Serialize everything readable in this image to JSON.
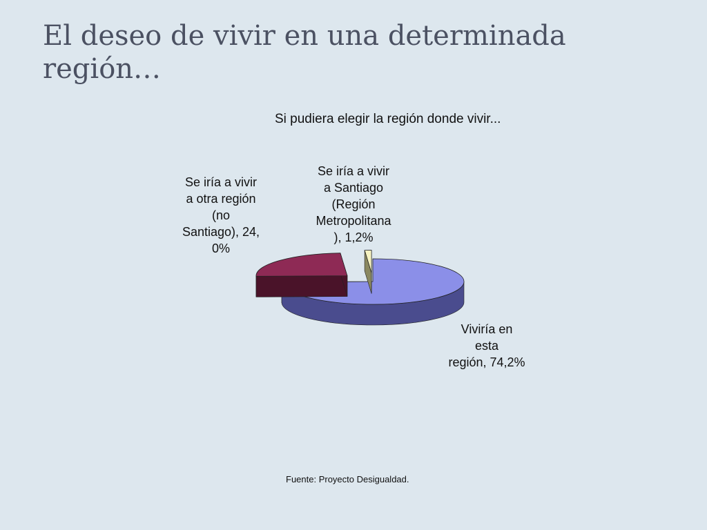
{
  "slide": {
    "title": "El deseo de vivir en una determinada región…",
    "source": "Fuente: Proyecto Desigualdad."
  },
  "chart_data": {
    "type": "pie",
    "title": "Si pudiera elegir la región donde vivir...",
    "three_d": true,
    "slices": [
      {
        "name": "Viviría en esta región",
        "value": 74.2,
        "label": "Viviría en\nesta\nregión, 74,2%",
        "color": "#8b8fe8",
        "side_color": "#4a4c8e",
        "exploded": false
      },
      {
        "name": "Se iría a vivir a otra región (no Santiago)",
        "value": 24.0,
        "label": "Se iría a vivir\na otra región\n(no\nSantiago), 24,\n0%",
        "color": "#8e2a55",
        "side_color": "#4a1329",
        "exploded": true
      },
      {
        "name": "Se iría a vivir a Santiago (Región Metropolitana)",
        "value": 1.2,
        "label": "Se iría a vivir\na Santiago\n(Región\nMetropolitana\n), 1,2%",
        "color": "#f6f2c0",
        "side_color": "#8a8860",
        "exploded": true
      }
    ]
  }
}
